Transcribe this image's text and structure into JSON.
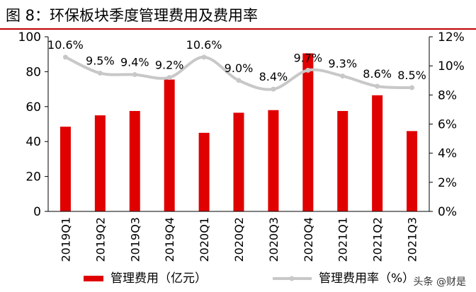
{
  "figure": {
    "title": "图 8：环保板块季度管理费用及费用率"
  },
  "watermark": "头条 @财是",
  "colors": {
    "bar": "#e00000",
    "line": "#c8c8c8",
    "axis": "#000000"
  },
  "chart_data": {
    "type": "bar+line",
    "categories": [
      "2019Q1",
      "2019Q2",
      "2019Q3",
      "2019Q4",
      "2020Q1",
      "2020Q2",
      "2020Q3",
      "2020Q4",
      "2021Q1",
      "2021Q2",
      "2021Q3"
    ],
    "series": [
      {
        "name": "管理费用（亿元）",
        "type": "bar",
        "axis": "left",
        "values": [
          48.5,
          55,
          57.5,
          75.5,
          45,
          56.5,
          58,
          90.5,
          57.5,
          66.5,
          46
        ]
      },
      {
        "name": "管理费用率（%）",
        "type": "line",
        "axis": "right",
        "values": [
          10.6,
          9.5,
          9.4,
          9.2,
          10.6,
          9.0,
          8.4,
          9.7,
          9.3,
          8.6,
          8.5
        ],
        "labels": [
          "10.6%",
          "9.5%",
          "9.4%",
          "9.2%",
          "10.6%",
          "9.0%",
          "8.4%",
          "9.7%",
          "9.3%",
          "8.6%",
          "8.5%"
        ]
      }
    ],
    "left_axis": {
      "ticks": [
        "0",
        "20",
        "40",
        "60",
        "80",
        "100"
      ],
      "ylim": [
        0,
        100
      ]
    },
    "right_axis": {
      "ticks": [
        "0%",
        "2%",
        "4%",
        "6%",
        "8%",
        "10%",
        "12%"
      ],
      "ylim": [
        0,
        12
      ]
    },
    "legend": {
      "placement": "bottom",
      "bar_label": "管理费用（亿元）",
      "line_label": "管理费用率（%）"
    },
    "grid": false
  }
}
